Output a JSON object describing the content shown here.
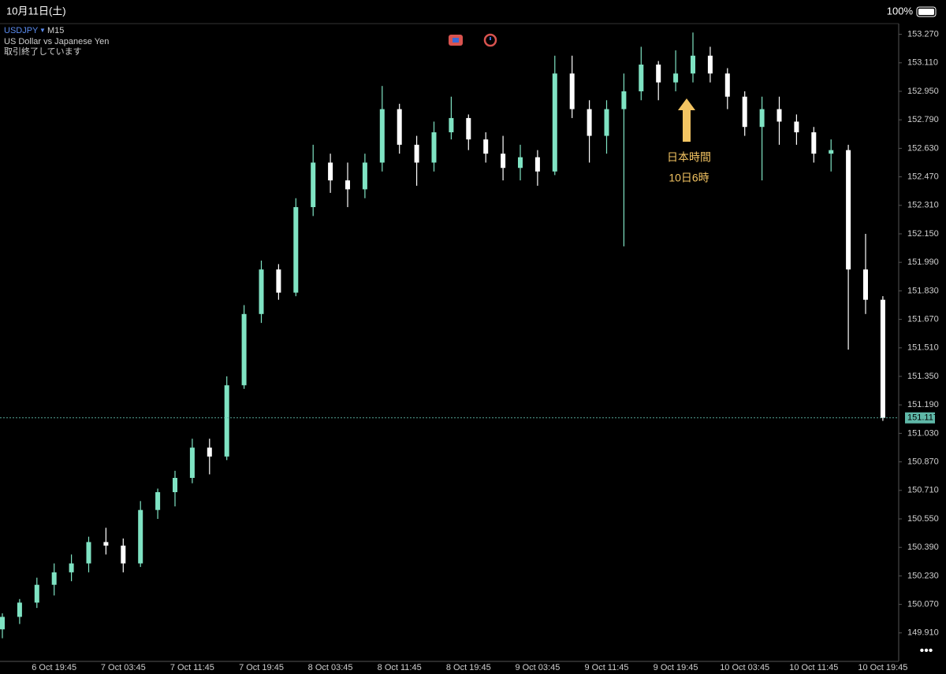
{
  "status_bar": {
    "date": "10月11日(土)",
    "battery": "100%"
  },
  "chart_data": {
    "type": "candlestick",
    "symbol": "USDJPY",
    "timeframe": "M15",
    "subtitle": "US Dollar vs Japanese Yen",
    "status": "取引終了しています",
    "annotation": [
      "日本時間",
      "10日6時"
    ],
    "categories": [
      null,
      null,
      null,
      "6 Oct 19:45",
      null,
      null,
      null,
      "7 Oct 03:45",
      null,
      null,
      null,
      "7 Oct 11:45",
      null,
      null,
      null,
      "7 Oct 19:45",
      null,
      null,
      null,
      "8 Oct 03:45",
      null,
      null,
      null,
      "8 Oct 11:45",
      null,
      null,
      null,
      "8 Oct 19:45",
      null,
      null,
      null,
      "9 Oct 03:45",
      null,
      null,
      null,
      "9 Oct 11:45",
      null,
      null,
      null,
      "9 Oct 19:45",
      null,
      null,
      null,
      "10 Oct 03:45",
      null,
      null,
      null,
      "10 Oct 11:45",
      null,
      null,
      null,
      "10 Oct 19:45"
    ],
    "open": [
      149.93,
      150.0,
      150.08,
      150.18,
      150.25,
      150.3,
      150.42,
      150.4,
      150.3,
      150.6,
      150.7,
      150.78,
      150.95,
      150.9,
      151.3,
      151.7,
      151.95,
      151.82,
      152.3,
      152.55,
      152.45,
      152.4,
      152.55,
      152.85,
      152.65,
      152.55,
      152.72,
      152.8,
      152.68,
      152.6,
      152.52,
      152.58,
      152.5,
      153.05,
      152.85,
      152.7,
      152.85,
      152.95,
      153.1,
      153.0,
      153.05,
      153.15,
      153.05,
      152.92,
      152.75,
      152.85,
      152.78,
      152.72,
      152.6,
      152.62,
      151.95,
      151.78
    ],
    "high": [
      150.02,
      150.1,
      150.22,
      150.3,
      150.35,
      150.45,
      150.5,
      150.44,
      150.65,
      150.72,
      150.82,
      151.0,
      151.0,
      151.35,
      151.75,
      152.0,
      151.98,
      152.35,
      152.65,
      152.6,
      152.55,
      152.6,
      152.98,
      152.88,
      152.7,
      152.78,
      152.92,
      152.82,
      152.72,
      152.7,
      152.65,
      152.62,
      153.15,
      153.15,
      152.9,
      152.9,
      153.05,
      153.2,
      153.12,
      153.18,
      153.28,
      153.2,
      153.08,
      152.95,
      152.92,
      152.92,
      152.82,
      152.75,
      152.68,
      152.65,
      152.15,
      151.8
    ],
    "low": [
      149.88,
      149.96,
      150.05,
      150.12,
      150.2,
      150.25,
      150.35,
      150.25,
      150.28,
      150.55,
      150.62,
      150.75,
      150.8,
      150.88,
      151.28,
      151.65,
      151.78,
      151.8,
      152.25,
      152.38,
      152.3,
      152.35,
      152.5,
      152.6,
      152.42,
      152.5,
      152.68,
      152.62,
      152.55,
      152.45,
      152.45,
      152.42,
      152.48,
      152.8,
      152.55,
      152.6,
      152.08,
      152.9,
      152.9,
      152.95,
      153.0,
      153.0,
      152.85,
      152.7,
      152.45,
      152.65,
      152.65,
      152.55,
      152.5,
      151.5,
      151.7,
      151.1
    ],
    "close": [
      150.0,
      150.08,
      150.18,
      150.25,
      150.3,
      150.42,
      150.4,
      150.3,
      150.6,
      150.7,
      150.78,
      150.95,
      150.9,
      151.3,
      151.7,
      151.95,
      151.82,
      152.3,
      152.55,
      152.45,
      152.4,
      152.55,
      152.85,
      152.65,
      152.55,
      152.72,
      152.8,
      152.68,
      152.6,
      152.52,
      152.58,
      152.5,
      153.05,
      152.85,
      152.7,
      152.85,
      152.95,
      153.1,
      153.0,
      153.05,
      153.15,
      153.05,
      152.92,
      152.75,
      152.85,
      152.78,
      152.72,
      152.6,
      152.62,
      151.95,
      151.78,
      151.117
    ],
    "current_price": 151.117,
    "up_color": "#7fe3c3",
    "down_color": "#ffffff",
    "price_line_color": "#5fb8a8",
    "ylim": [
      149.75,
      153.33
    ],
    "yticks": [
      {
        "value": 153.27,
        "label": "153.270"
      },
      {
        "value": 153.11,
        "label": "153.110"
      },
      {
        "value": 152.95,
        "label": "152.950"
      },
      {
        "value": 152.79,
        "label": "152.790"
      },
      {
        "value": 152.63,
        "label": "152.630"
      },
      {
        "value": 152.47,
        "label": "152.470"
      },
      {
        "value": 152.31,
        "label": "152.310"
      },
      {
        "value": 152.15,
        "label": "152.150"
      },
      {
        "value": 151.99,
        "label": "151.990"
      },
      {
        "value": 151.83,
        "label": "151.830"
      },
      {
        "value": 151.67,
        "label": "151.670"
      },
      {
        "value": 151.51,
        "label": "151.510"
      },
      {
        "value": 151.35,
        "label": "151.350"
      },
      {
        "value": 151.19,
        "label": "151.190"
      },
      {
        "value": 151.03,
        "label": "151.030"
      },
      {
        "value": 150.87,
        "label": "150.870"
      },
      {
        "value": 150.71,
        "label": "150.710"
      },
      {
        "value": 150.55,
        "label": "150.550"
      },
      {
        "value": 150.39,
        "label": "150.390"
      },
      {
        "value": 150.23,
        "label": "150.230"
      },
      {
        "value": 150.07,
        "label": "150.070"
      },
      {
        "value": 149.91,
        "label": "149.910"
      }
    ],
    "grid": false
  }
}
